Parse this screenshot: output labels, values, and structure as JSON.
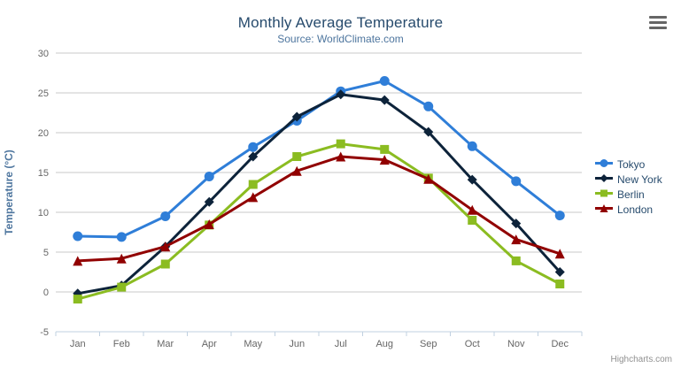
{
  "chart_data": {
    "type": "line",
    "title": "Monthly Average Temperature",
    "subtitle": "Source: WorldClimate.com",
    "xlabel": "",
    "ylabel": "Temperature (°C)",
    "categories": [
      "Jan",
      "Feb",
      "Mar",
      "Apr",
      "May",
      "Jun",
      "Jul",
      "Aug",
      "Sep",
      "Oct",
      "Nov",
      "Dec"
    ],
    "ylim": [
      -5,
      30
    ],
    "yticks": [
      -5,
      0,
      5,
      10,
      15,
      20,
      25,
      30
    ],
    "grid": true,
    "legend_position": "right",
    "series": [
      {
        "name": "Tokyo",
        "color": "#2f7ed8",
        "marker": "circle",
        "values": [
          7.0,
          6.9,
          9.5,
          14.5,
          18.2,
          21.5,
          25.2,
          26.5,
          23.3,
          18.3,
          13.9,
          9.6
        ]
      },
      {
        "name": "New York",
        "color": "#0d233a",
        "marker": "diamond",
        "values": [
          -0.2,
          0.8,
          5.7,
          11.3,
          17.0,
          22.0,
          24.8,
          24.1,
          20.1,
          14.1,
          8.6,
          2.5
        ]
      },
      {
        "name": "Berlin",
        "color": "#8bbc21",
        "marker": "square",
        "values": [
          -0.9,
          0.6,
          3.5,
          8.4,
          13.5,
          17.0,
          18.6,
          17.9,
          14.3,
          9.0,
          3.9,
          1.0
        ]
      },
      {
        "name": "London",
        "color": "#910000",
        "marker": "triangle",
        "values": [
          3.9,
          4.2,
          5.7,
          8.5,
          11.9,
          15.2,
          17.0,
          16.6,
          14.2,
          10.3,
          6.6,
          4.8
        ]
      }
    ],
    "credits": "Highcharts.com"
  },
  "colors": {
    "grid_line": "#c8c8c8",
    "axis_line": "#c0d0e0",
    "tick_label": "#666666",
    "axis_title": "#4d759e",
    "title_text": "#274b6d",
    "burger_icon": "#666666"
  },
  "icons": {
    "context_menu": "hamburger-menu-icon"
  }
}
